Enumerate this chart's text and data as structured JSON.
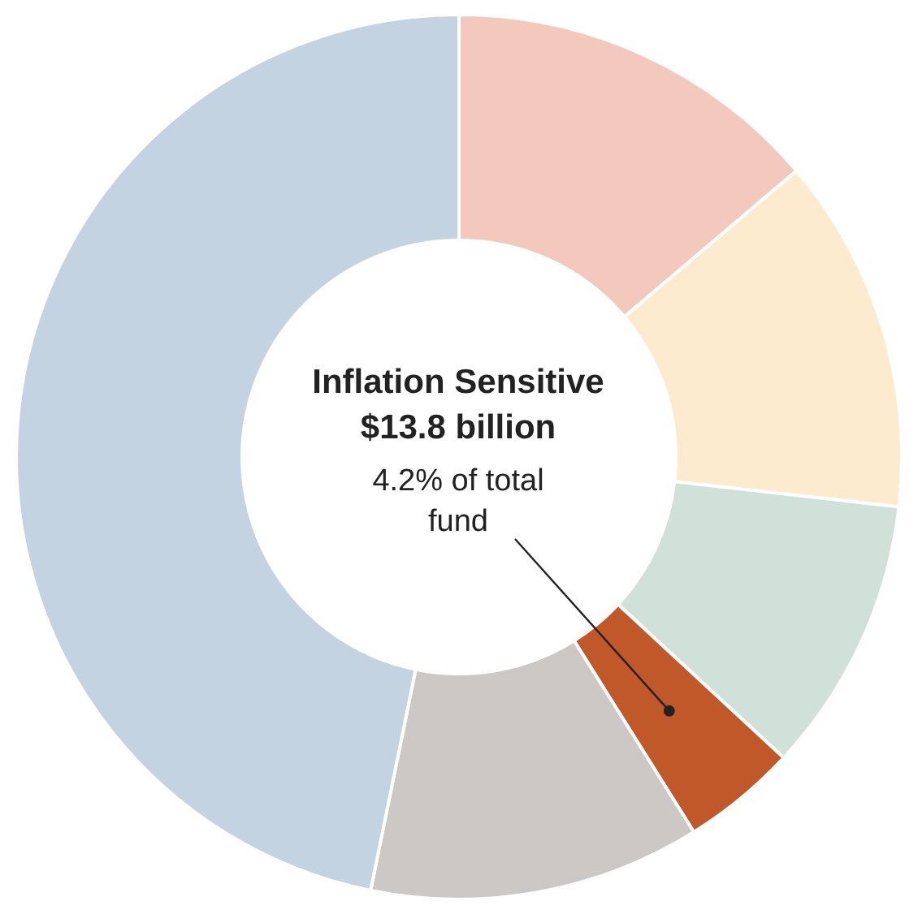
{
  "chart_data": {
    "type": "donut",
    "title": "Inflation Sensitive",
    "subtitle": "$13.8 billion",
    "annotations": [
      "4.2% of total fund"
    ],
    "categories": [
      null,
      null,
      null,
      null,
      null,
      null
    ],
    "values": [
      13.8,
      13.0,
      10.1,
      4.2,
      12.1,
      46.8
    ],
    "colors": [
      "#f4c9bd",
      "#fdebd0",
      "#cfe1d9",
      "#c0582a",
      "#cbc8c5",
      "#c4d3e1"
    ],
    "legend": false
  }
}
